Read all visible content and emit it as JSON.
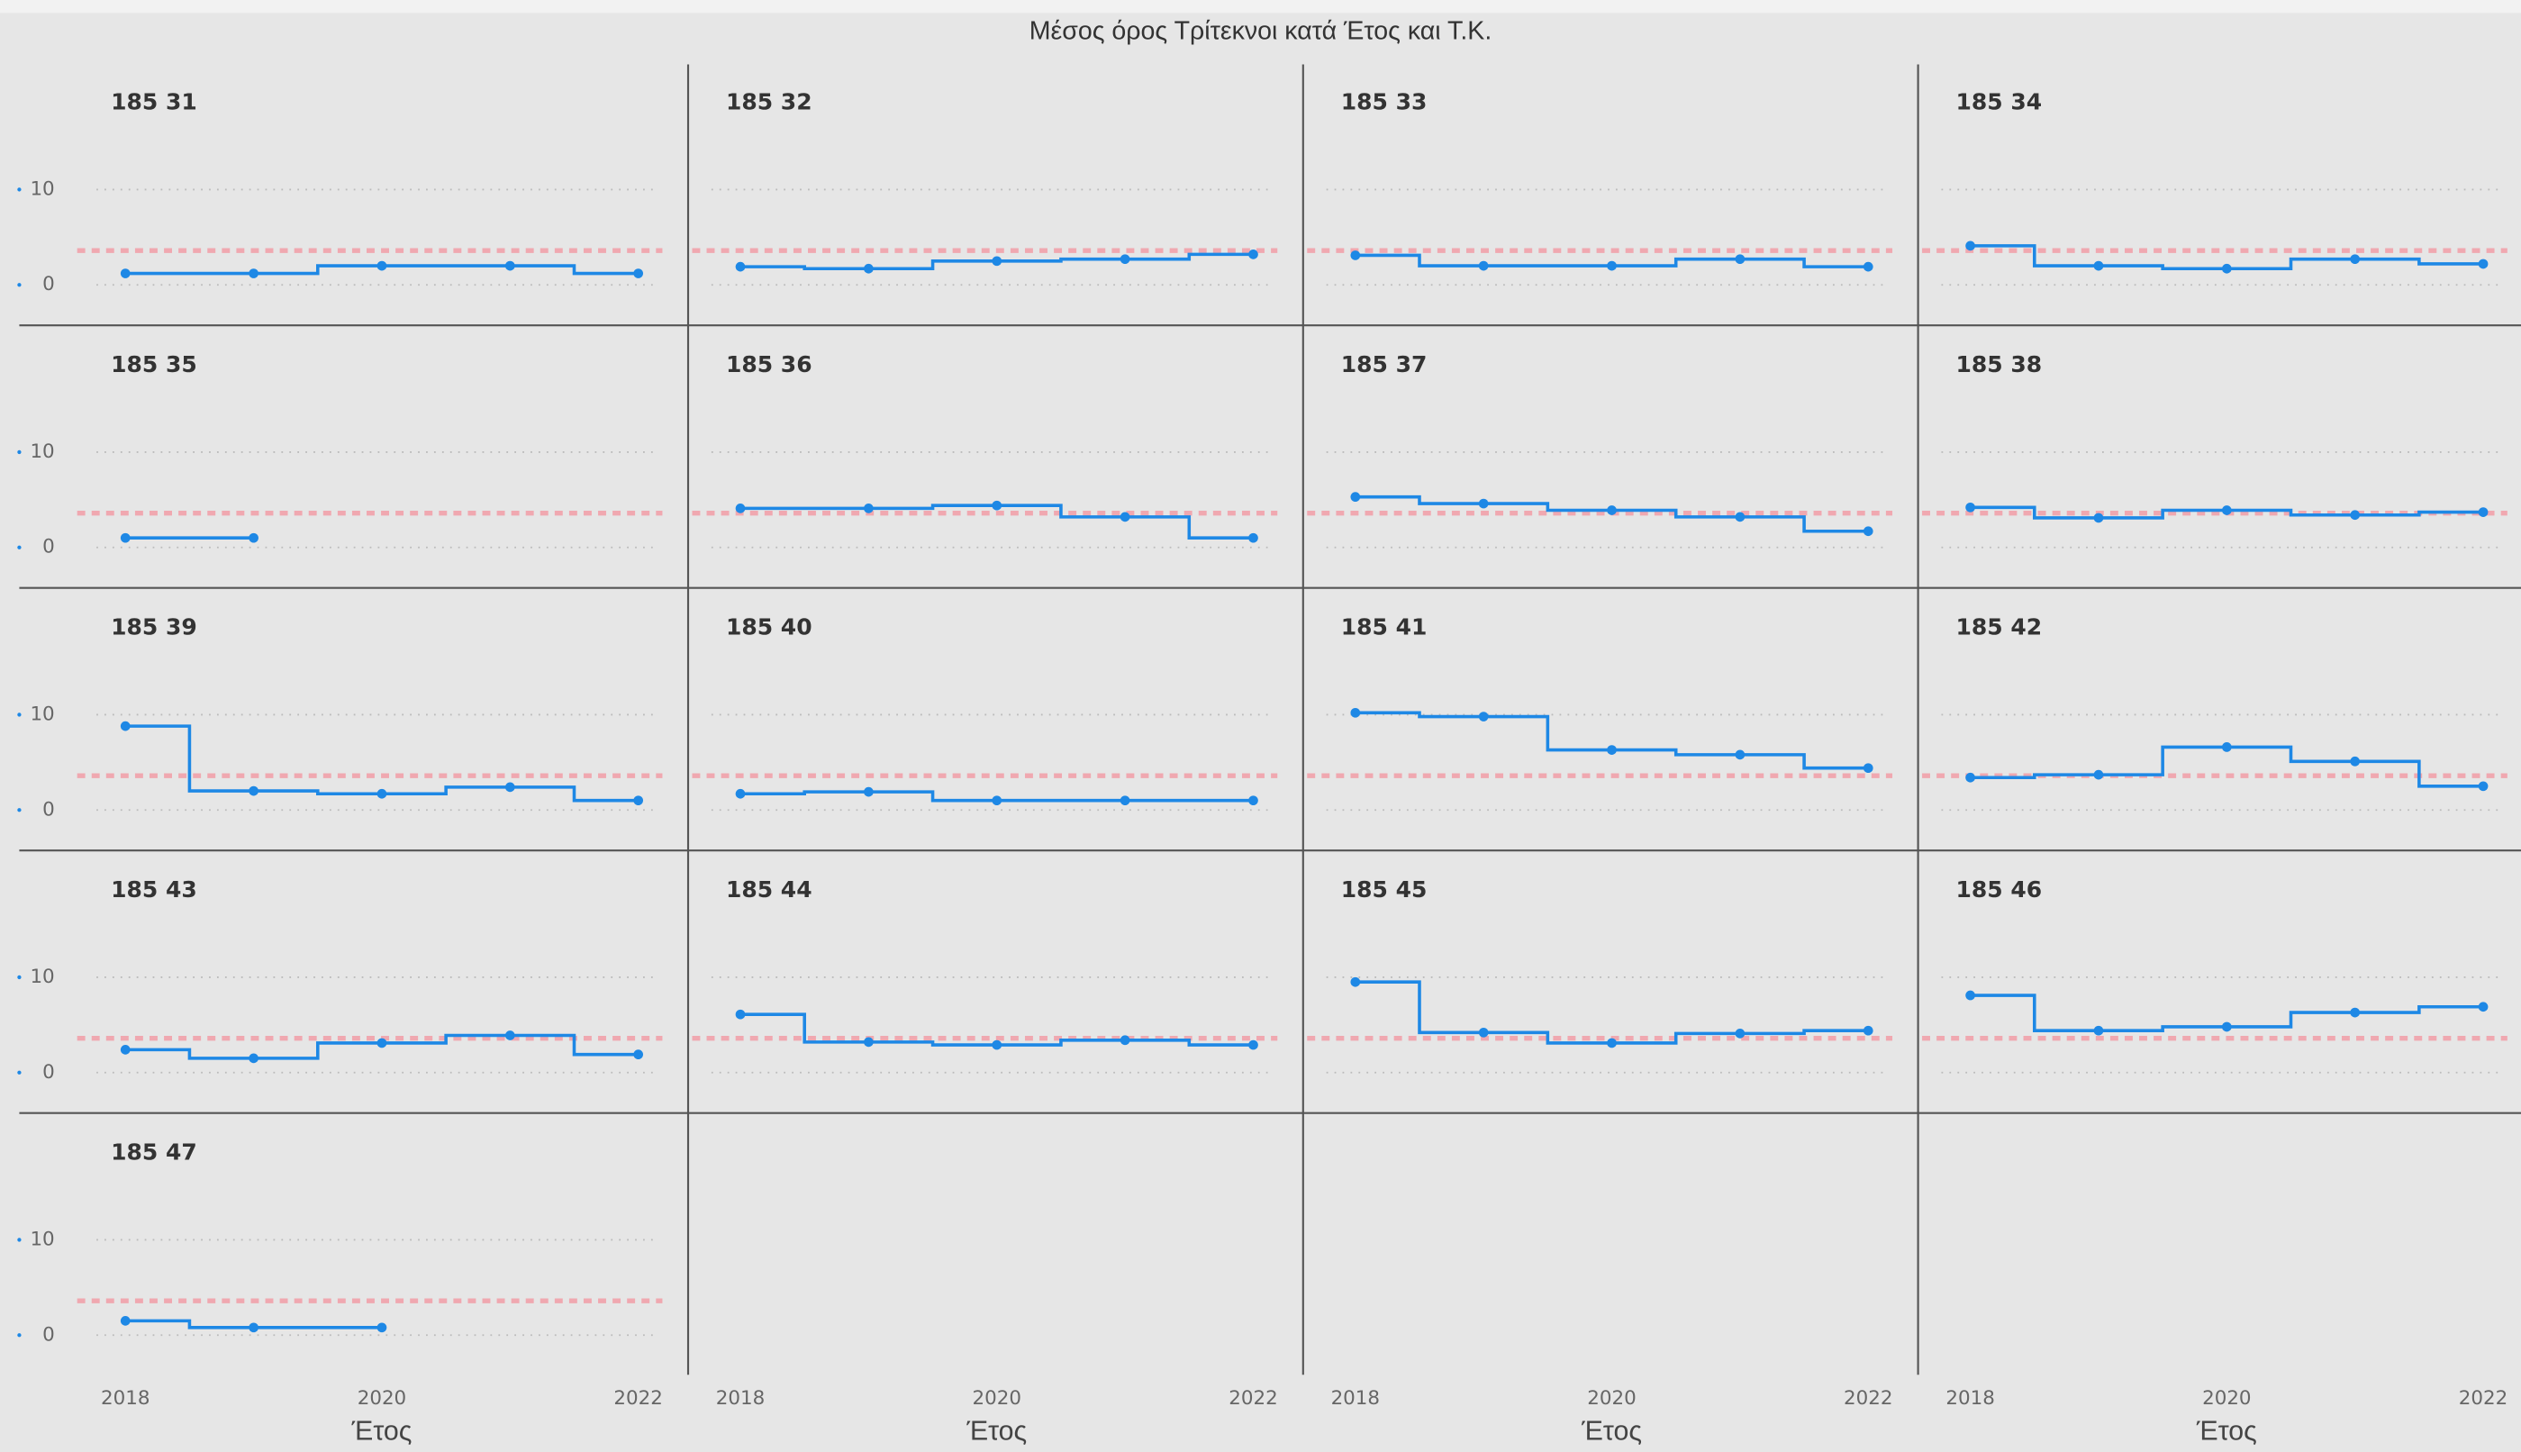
{
  "chart_data": {
    "type": "step",
    "title": "Μέσος όρος Τρίτεκνοι κατά Έτος και Τ.Κ.",
    "xlabel": "Έτος",
    "x": [
      2018,
      2019,
      2020,
      2021,
      2022
    ],
    "xlim": [
      2018,
      2022
    ],
    "xticks": [
      2018,
      2020,
      2022
    ],
    "ylim": [
      -2,
      12
    ],
    "yticks": [
      0,
      10
    ],
    "grid": true,
    "color": "#1e88e5",
    "average_line": {
      "value": 3.6,
      "color": "#f0a8b0"
    },
    "series": [
      {
        "name": "185 31",
        "values": [
          1.2,
          1.2,
          2.0,
          2.0,
          1.2
        ]
      },
      {
        "name": "185 32",
        "values": [
          1.9,
          1.7,
          2.5,
          2.7,
          3.2
        ]
      },
      {
        "name": "185 33",
        "values": [
          3.1,
          2.0,
          2.0,
          2.7,
          1.9
        ]
      },
      {
        "name": "185 34",
        "values": [
          4.1,
          2.0,
          1.7,
          2.7,
          2.2
        ]
      },
      {
        "name": "185 35",
        "values": [
          1.0,
          1.0,
          null,
          null,
          null
        ]
      },
      {
        "name": "185 36",
        "values": [
          4.1,
          4.1,
          4.4,
          3.2,
          1.0
        ]
      },
      {
        "name": "185 37",
        "values": [
          5.3,
          4.6,
          3.9,
          3.2,
          1.7
        ]
      },
      {
        "name": "185 38",
        "values": [
          4.2,
          3.1,
          3.9,
          3.4,
          3.7
        ]
      },
      {
        "name": "185 39",
        "values": [
          8.8,
          2.0,
          1.7,
          2.4,
          1.0
        ]
      },
      {
        "name": "185 40",
        "values": [
          1.7,
          1.9,
          1.0,
          1.0,
          1.0
        ]
      },
      {
        "name": "185 41",
        "values": [
          10.2,
          9.8,
          6.3,
          5.8,
          4.4
        ]
      },
      {
        "name": "185 42",
        "values": [
          3.4,
          3.7,
          6.6,
          5.1,
          2.5
        ]
      },
      {
        "name": "185 43",
        "values": [
          2.4,
          1.5,
          3.1,
          3.9,
          1.9
        ]
      },
      {
        "name": "185 44",
        "values": [
          6.1,
          3.2,
          2.9,
          3.4,
          2.9
        ]
      },
      {
        "name": "185 45",
        "values": [
          9.5,
          4.2,
          3.1,
          4.1,
          4.4
        ]
      },
      {
        "name": "185 46",
        "values": [
          8.1,
          4.4,
          4.8,
          6.3,
          6.9
        ]
      },
      {
        "name": "185 47",
        "values": [
          1.5,
          0.8,
          0.8,
          null,
          null
        ]
      }
    ]
  }
}
